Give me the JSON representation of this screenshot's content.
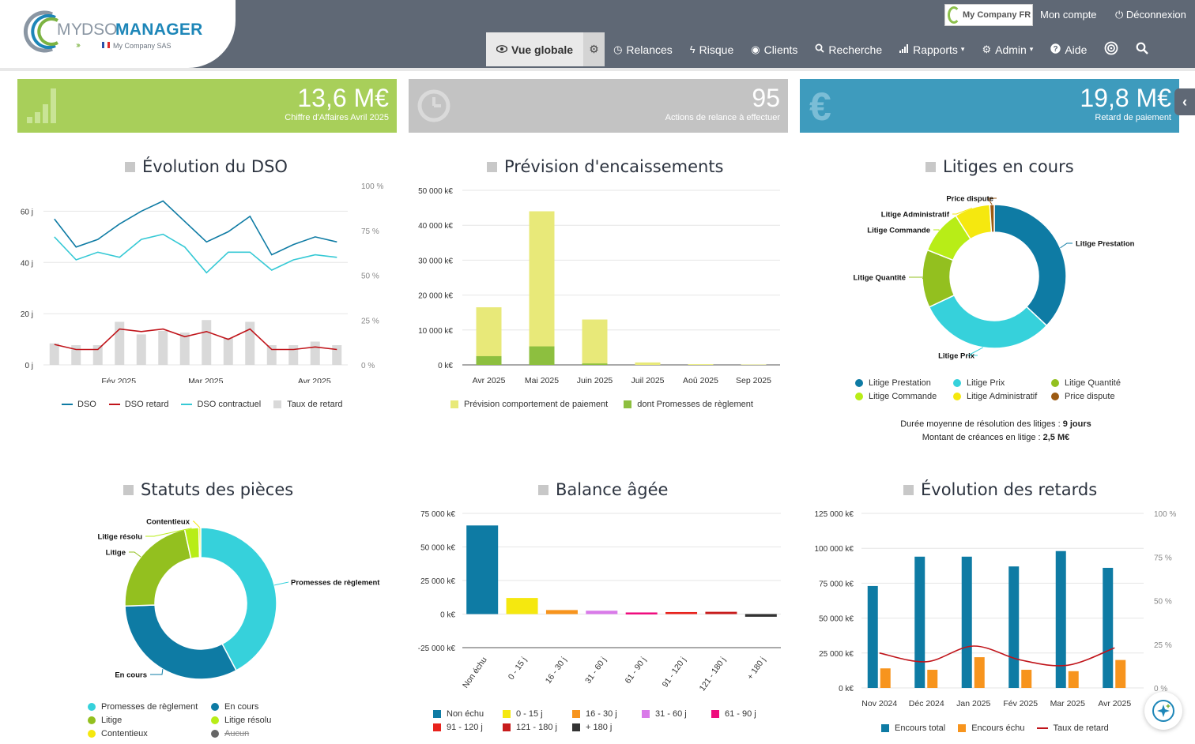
{
  "brand": {
    "logo_my": "MY",
    "logo_dso": "DSO",
    "logo_manager": "MANAGER",
    "company_name": "My Company SAS",
    "company_badge": "My Company FR"
  },
  "top_links": {
    "account": "Mon compte",
    "logout": "Déconnexion"
  },
  "nav": [
    {
      "label": "Vue globale",
      "icon": "eye-icon"
    },
    {
      "label": "Relances",
      "icon": "clock-icon"
    },
    {
      "label": "Risque",
      "icon": "bolt-icon"
    },
    {
      "label": "Clients",
      "icon": "globe-icon"
    },
    {
      "label": "Recherche",
      "icon": "search-icon"
    },
    {
      "label": "Rapports",
      "icon": "bar-chart-icon"
    },
    {
      "label": "Admin",
      "icon": "gear-icon"
    },
    {
      "label": "Aide",
      "icon": "help-icon"
    }
  ],
  "kpis": [
    {
      "value": "13,6 M€",
      "label": "Chiffre d'Affaires Avril 2025",
      "color": "#a8cf5a",
      "icon": "bar-chart-icon"
    },
    {
      "value": "95",
      "label": "Actions de relance à effectuer",
      "color": "#c3c3c3",
      "icon": "clock-icon"
    },
    {
      "value": "19,8 M€",
      "label": "Retard de paiement",
      "color": "#3e9bbd",
      "icon": "euro-icon"
    }
  ],
  "panels": {
    "dso": {
      "title": "Évolution du DSO"
    },
    "forecast": {
      "title": "Prévision d'encaissements"
    },
    "disputes": {
      "title": "Litiges en cours"
    },
    "statuses": {
      "title": "Statuts des pièces"
    },
    "aging": {
      "title": "Balance âgée"
    },
    "delays": {
      "title": "Évolution des retards"
    }
  },
  "dispute_stats": {
    "duration_label": "Durée moyenne de résolution des litiges : ",
    "duration_value": "9 jours",
    "amount_label": "Montant de créances en litige : ",
    "amount_value": "2,5 M€"
  },
  "chart_data": [
    {
      "id": "dso",
      "type": "line",
      "title": "Évolution du DSO",
      "x_tick_labels": [
        "Fév 2025",
        "Mar 2025",
        "Avr 2025"
      ],
      "y_left_ticks": [
        "0 j",
        "20 j",
        "40 j",
        "60 j"
      ],
      "y_right_ticks": [
        "0 %",
        "25 %",
        "50 %",
        "75 %",
        "100 %"
      ],
      "ylim_left": [
        0,
        70
      ],
      "ylim_right": [
        0,
        100
      ],
      "points": 14,
      "series": [
        {
          "name": "DSO",
          "color": "#0e7ba4",
          "axis": "left",
          "values": [
            57,
            46,
            49,
            55,
            60,
            64,
            56,
            48,
            52,
            58,
            43,
            47,
            50,
            48
          ]
        },
        {
          "name": "DSO retard",
          "color": "#c0141a",
          "axis": "left",
          "values": [
            8,
            6,
            6,
            14,
            13,
            14,
            11,
            13,
            10,
            14,
            6,
            6,
            7,
            6
          ]
        },
        {
          "name": "DSO contractuel",
          "color": "#36c9d5",
          "axis": "left",
          "values": [
            50,
            41,
            44,
            42,
            49,
            51,
            46,
            36,
            44,
            44,
            37,
            41,
            43,
            42
          ]
        },
        {
          "name": "Taux de retard",
          "color": "#d9d9d9",
          "axis": "right",
          "type": "bar",
          "values": [
            12,
            11,
            11,
            24,
            17,
            19,
            18,
            25,
            15,
            24,
            11,
            11,
            13,
            11
          ]
        }
      ]
    },
    {
      "id": "forecast",
      "type": "bar",
      "title": "Prévision d'encaissements",
      "categories": [
        "Avr 2025",
        "Mai 2025",
        "Juin 2025",
        "Juil 2025",
        "Aoû 2025",
        "Sep 2025"
      ],
      "y_ticks": [
        "0 k€",
        "10 000 k€",
        "20 000 k€",
        "30 000 k€",
        "40 000 k€",
        "50 000 k€"
      ],
      "ylim": [
        0,
        50000
      ],
      "series": [
        {
          "name": "Prévision comportement de paiement",
          "color": "#e8e979",
          "values": [
            16500,
            44000,
            13000,
            700,
            200,
            100
          ]
        },
        {
          "name": "dont Promesses de règlement",
          "color": "#8dbf3f",
          "values": [
            2500,
            5300,
            400,
            0,
            0,
            0
          ]
        }
      ]
    },
    {
      "id": "disputes",
      "type": "pie",
      "title": "Litiges en cours",
      "slices": [
        {
          "label": "Litige Prestation",
          "color": "#0e7ba4",
          "value": 37
        },
        {
          "label": "Litige Prix",
          "color": "#36d1db",
          "value": 31
        },
        {
          "label": "Litige Quantité",
          "color": "#93c01f",
          "value": 13
        },
        {
          "label": "Litige Commande",
          "color": "#b8ed17",
          "value": 10
        },
        {
          "label": "Litige Administratif",
          "color": "#f5e80f",
          "value": 8
        },
        {
          "label": "Price dispute",
          "color": "#9c5a12",
          "value": 1
        }
      ]
    },
    {
      "id": "statuses",
      "type": "pie",
      "title": "Statuts des pièces",
      "slices": [
        {
          "label": "Promesses de règlement",
          "color": "#36d1db",
          "value": 42
        },
        {
          "label": "En cours",
          "color": "#0e7ba4",
          "value": 32
        },
        {
          "label": "Litige",
          "color": "#93c01f",
          "value": 22
        },
        {
          "label": "Litige résolu",
          "color": "#b8ed17",
          "value": 3
        },
        {
          "label": "Contentieux",
          "color": "#f5e80f",
          "value": 0.4
        },
        {
          "label": "Aucun",
          "color": "#666666",
          "value": 0,
          "disabled": true
        }
      ]
    },
    {
      "id": "aging",
      "type": "bar",
      "title": "Balance âgée",
      "categories": [
        "Non échu",
        "0 - 15 j",
        "16 - 30 j",
        "31 - 60 j",
        "61 - 90 j",
        "91 - 120 j",
        "121 - 180 j",
        "+ 180 j"
      ],
      "colors": [
        "#0e7ba4",
        "#f5e80f",
        "#f7941d",
        "#d97ae9",
        "#ef0b7d",
        "#e8231d",
        "#c81c1c",
        "#333333"
      ],
      "values": [
        66000,
        12000,
        3000,
        2500,
        1200,
        1500,
        1700,
        -2000
      ],
      "y_ticks": [
        "-25 000 k€",
        "0 k€",
        "25 000 k€",
        "50 000 k€",
        "75 000 k€"
      ],
      "ylim": [
        -25000,
        75000
      ]
    },
    {
      "id": "delays",
      "type": "bar",
      "title": "Évolution des retards",
      "categories": [
        "Nov 2024",
        "Déc 2024",
        "Jan 2025",
        "Fév 2025",
        "Mar 2025",
        "Avr 2025"
      ],
      "y_left_ticks": [
        "0 k€",
        "25 000 k€",
        "50 000 k€",
        "75 000 k€",
        "100 000 k€",
        "125 000 k€"
      ],
      "y_right_ticks": [
        "0 %",
        "25 %",
        "50 %",
        "75 %",
        "100 %"
      ],
      "ylim_left": [
        0,
        125000
      ],
      "ylim_right": [
        0,
        100
      ],
      "series": [
        {
          "name": "Encours total",
          "color": "#0e7ba4",
          "values": [
            73000,
            94000,
            94000,
            87000,
            98000,
            86000
          ]
        },
        {
          "name": "Encours échu",
          "color": "#f7941d",
          "values": [
            14000,
            13000,
            22000,
            13000,
            12000,
            20000
          ]
        },
        {
          "name": "Taux de retard",
          "color": "#c0141a",
          "type": "line",
          "values": [
            20,
            15,
            24,
            16,
            13,
            23
          ]
        }
      ]
    }
  ]
}
